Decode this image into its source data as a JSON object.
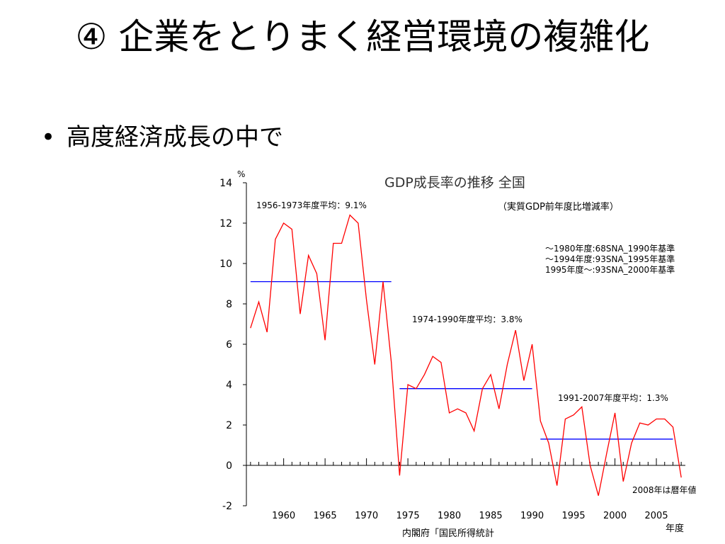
{
  "slide": {
    "title": "④ 企業をとりまく経営環境の複雑化",
    "bullet": "高度経済成長の中で"
  },
  "chart_data": {
    "type": "line",
    "title": "GDP成長率の推移 全国",
    "subtitle": "（実質GDP前年度比増減率）",
    "ylabel": "%",
    "xlabel": "年度",
    "source": "内閣府「国民所得統計",
    "ylim": [
      -2,
      14
    ],
    "xlim": [
      1955.5,
      2008.5
    ],
    "y_ticks": [
      -2,
      0,
      2,
      4,
      6,
      8,
      10,
      12,
      14
    ],
    "x_ticks": [
      1960,
      1965,
      1970,
      1975,
      1980,
      1985,
      1990,
      1995,
      2000,
      2005
    ],
    "line_color": "#ff0000",
    "avg_color": "#0000ff",
    "series": [
      {
        "x": [
          1956,
          1957,
          1958,
          1959,
          1960,
          1961,
          1962,
          1963,
          1964,
          1965,
          1966,
          1967,
          1968,
          1969,
          1970,
          1971,
          1972,
          1973,
          1974,
          1975,
          1976,
          1977,
          1978,
          1979,
          1980,
          1981,
          1982,
          1983,
          1984,
          1985,
          1986,
          1987,
          1988,
          1989,
          1990,
          1991,
          1992,
          1993,
          1994,
          1995,
          1996,
          1997,
          1998,
          1999,
          2000,
          2001,
          2002,
          2003,
          2004,
          2005,
          2006,
          2007,
          2008
        ],
        "values": [
          6.8,
          8.1,
          6.6,
          11.2,
          12.0,
          11.7,
          7.5,
          10.4,
          9.5,
          6.2,
          11.0,
          11.0,
          12.4,
          12.0,
          8.2,
          5.0,
          9.1,
          5.1,
          -0.5,
          4.0,
          3.8,
          4.5,
          5.4,
          5.1,
          2.6,
          2.8,
          2.6,
          1.7,
          3.8,
          4.5,
          2.8,
          5.0,
          6.7,
          4.2,
          6.0,
          2.2,
          1.1,
          -1.0,
          2.3,
          2.5,
          2.9,
          0.0,
          -1.5,
          0.6,
          2.6,
          -0.8,
          1.1,
          2.1,
          2.0,
          2.3,
          2.3,
          1.9,
          -0.6
        ]
      }
    ],
    "averages": [
      {
        "label": "1956-1973年度平均：9.1%",
        "from": 1956,
        "to": 1973,
        "value": 9.1
      },
      {
        "label": "1974-1990年度平均：3.8%",
        "from": 1974,
        "to": 1990,
        "value": 3.8
      },
      {
        "label": "1991-2007年度平均：1.3%",
        "from": 1991,
        "to": 2007,
        "value": 1.3
      }
    ],
    "notes": [
      "～1980年度:68SNA_1990年基準",
      "～1994年度:93SNA_1995年基準",
      "1995年度～:93SNA_2000年基準"
    ],
    "annotation": "2008年は暦年値"
  }
}
